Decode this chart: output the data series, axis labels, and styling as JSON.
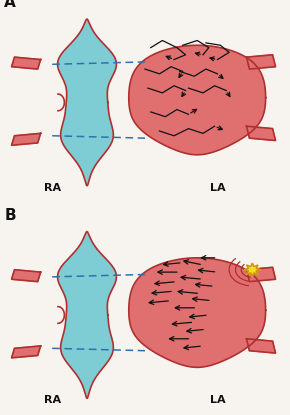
{
  "bg_color": "#f7f4f0",
  "ra_color": "#7ecdd4",
  "la_color": "#e07070",
  "outline_color": "#b03030",
  "arrow_color": "#111111",
  "dashed_color": "#3070b0",
  "label_color": "#111111",
  "star_fill": "#f0e020",
  "star_edge": "#d09010",
  "panel_A": "A",
  "panel_B": "B",
  "ra_label": "RA",
  "la_label": "LA"
}
